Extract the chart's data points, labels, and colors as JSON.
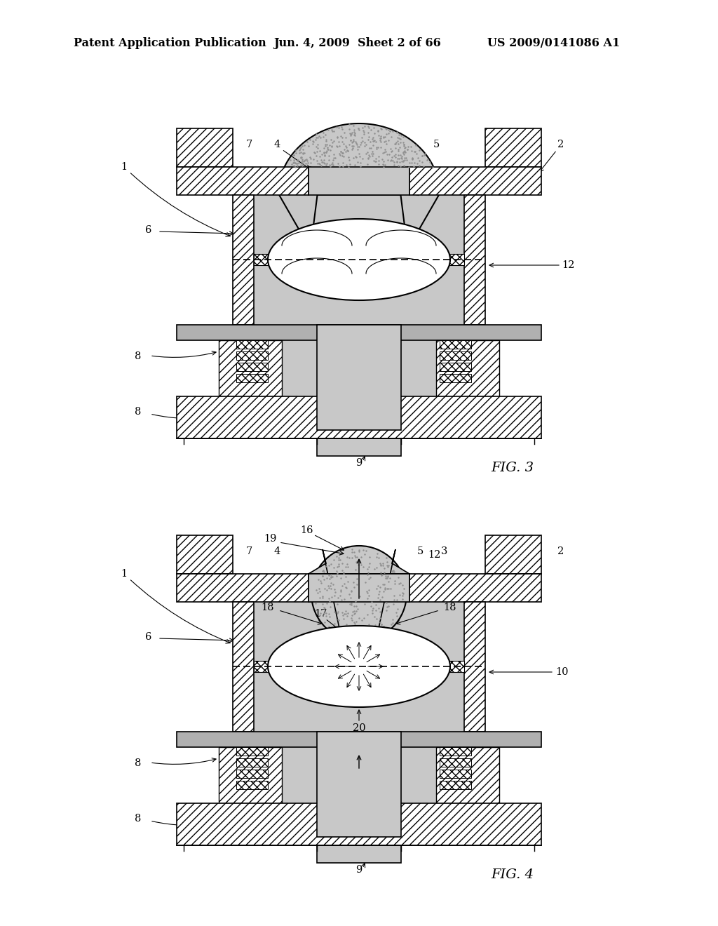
{
  "bg_color": "#ffffff",
  "header_text": "Patent Application Publication",
  "header_date": "Jun. 4, 2009  Sheet 2 of 66",
  "header_patent": "US 2009/0141086 A1",
  "fig3_label": "FIG. 3",
  "fig4_label": "FIG. 4",
  "stipple": "#c8c8c8",
  "white": "#ffffff",
  "black": "#000000",
  "hatch_gray": "#888888"
}
